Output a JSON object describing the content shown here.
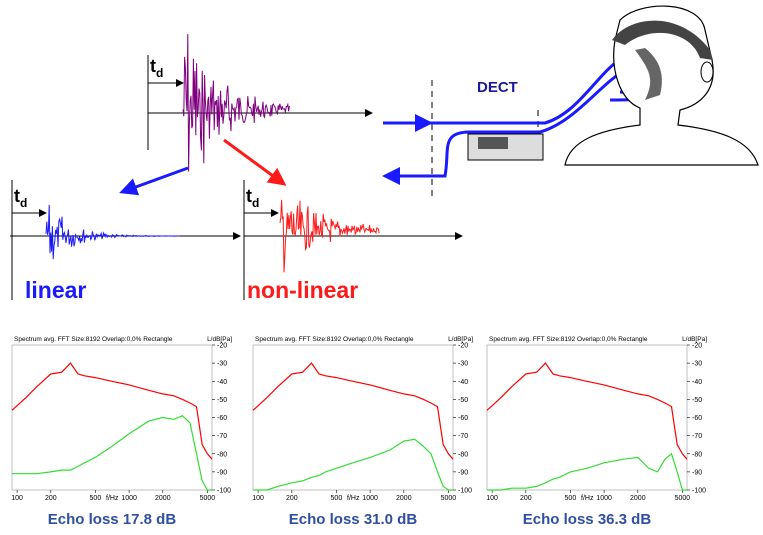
{
  "diagram": {
    "td_base": "t",
    "td_sub": "d",
    "dect": "DECT",
    "linear": "linear",
    "nonlinear": "non-linear"
  },
  "chart_data": [
    {
      "type": "line",
      "title": "Spectrum avg.  FFT Size:8192  Overlap:0,0%  Rectangle",
      "y_label": "L/dB[Pa]",
      "x_label": "f/Hz",
      "log_x": true,
      "xlim": [
        90,
        5500
      ],
      "xticks": [
        100,
        200,
        500,
        1000,
        2000,
        5000
      ],
      "ylim": [
        -100,
        -20
      ],
      "yticks": [
        -20,
        -30,
        -40,
        -50,
        -60,
        -70,
        -80,
        -90,
        -100
      ],
      "x": [
        90,
        120,
        150,
        200,
        250,
        300,
        350,
        400,
        500,
        700,
        1000,
        1500,
        2000,
        2500,
        3000,
        3500,
        4000,
        4500,
        5000,
        5500
      ],
      "series": [
        {
          "color": "#ff0000",
          "values": [
            -56,
            -49,
            -43,
            -36,
            -35,
            -30,
            -36,
            -37,
            -38,
            -40,
            -42,
            -45,
            -47,
            -48,
            -50,
            -52,
            -54,
            -75,
            -80,
            -83
          ]
        },
        {
          "color": "#33dd33",
          "values": [
            -91,
            -91,
            -91,
            -90,
            -89,
            -89,
            -87,
            -85,
            -82,
            -76,
            -69,
            -62,
            -60,
            -61,
            -59,
            -63,
            -80,
            -95,
            -100,
            -100
          ]
        }
      ],
      "caption": "Echo loss 17.8 dB"
    },
    {
      "type": "line",
      "title": "Spectrum avg.  FFT Size:8192  Overlap:0,0%  Rectangle",
      "y_label": "L/dB[Pa]",
      "x_label": "f/Hz",
      "log_x": true,
      "xlim": [
        90,
        5500
      ],
      "xticks": [
        100,
        200,
        500,
        1000,
        2000,
        5000
      ],
      "ylim": [
        -100,
        -20
      ],
      "yticks": [
        -20,
        -30,
        -40,
        -50,
        -60,
        -70,
        -80,
        -90,
        -100
      ],
      "x": [
        90,
        120,
        150,
        200,
        250,
        300,
        350,
        400,
        500,
        700,
        1000,
        1500,
        2000,
        2500,
        3000,
        3500,
        4000,
        4500,
        5000,
        5500
      ],
      "series": [
        {
          "color": "#ff0000",
          "values": [
            -56,
            -49,
            -43,
            -36,
            -35,
            -30,
            -36,
            -37,
            -38,
            -40,
            -42,
            -45,
            -47,
            -48,
            -50,
            -52,
            -54,
            -75,
            -80,
            -83
          ]
        },
        {
          "color": "#33dd33",
          "values": [
            -100,
            -100,
            -98,
            -96,
            -95,
            -93,
            -92,
            -90,
            -88,
            -85,
            -82,
            -78,
            -73,
            -72,
            -76,
            -80,
            -90,
            -98,
            -100,
            -100
          ]
        }
      ],
      "caption": "Echo loss 31.0 dB"
    },
    {
      "type": "line",
      "title": "Spectrum avg.  FFT Size:8192  Overlap:0,0%  Rectangle",
      "y_label": "L/dB[Pa]",
      "x_label": "f/Hz",
      "log_x": true,
      "xlim": [
        90,
        5500
      ],
      "xticks": [
        100,
        200,
        500,
        1000,
        2000,
        5000
      ],
      "ylim": [
        -100,
        -20
      ],
      "yticks": [
        -20,
        -30,
        -40,
        -50,
        -60,
        -70,
        -80,
        -90,
        -100
      ],
      "x": [
        90,
        120,
        150,
        200,
        250,
        300,
        350,
        400,
        500,
        700,
        1000,
        1500,
        2000,
        2500,
        3000,
        3500,
        4000,
        4500,
        5000,
        5500
      ],
      "series": [
        {
          "color": "#ff0000",
          "values": [
            -56,
            -49,
            -43,
            -36,
            -35,
            -30,
            -36,
            -37,
            -38,
            -40,
            -42,
            -45,
            -47,
            -48,
            -50,
            -52,
            -54,
            -75,
            -80,
            -83
          ]
        },
        {
          "color": "#33dd33",
          "values": [
            -100,
            -100,
            -99,
            -99,
            -98,
            -96,
            -94,
            -93,
            -90,
            -88,
            -85,
            -83,
            -82,
            -88,
            -90,
            -83,
            -80,
            -90,
            -100,
            -100
          ]
        }
      ],
      "caption": "Echo loss 36.3 dB"
    }
  ]
}
